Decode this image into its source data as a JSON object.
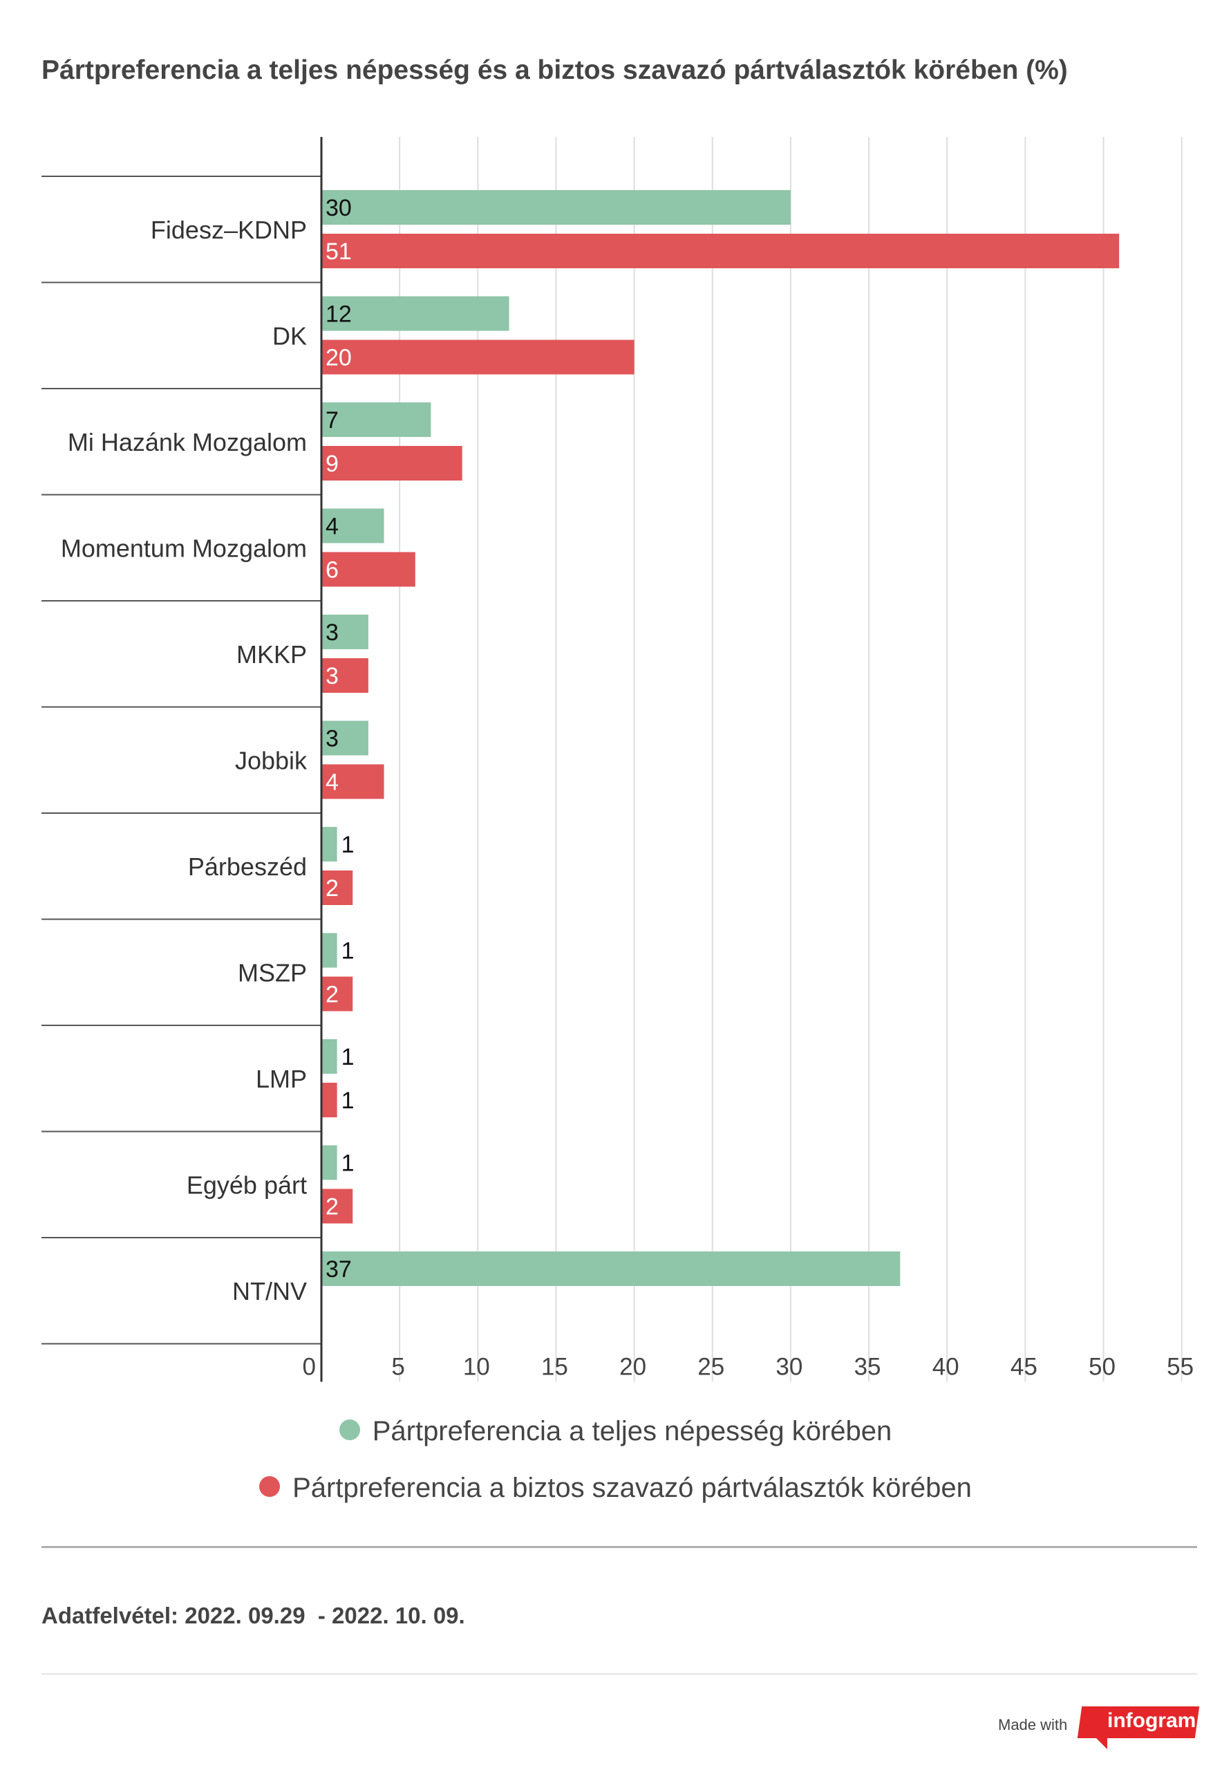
{
  "chart_data": {
    "type": "bar",
    "orientation": "horizontal",
    "title": "Pártpreferencia a teljes népesség és a biztos szavazó pártválasztók körében (%)",
    "categories": [
      "Fidesz–KDNP",
      "DK",
      "Mi Hazánk Mozgalom",
      "Momentum Mozgalom",
      "MKKP",
      "Jobbik",
      "Párbeszéd",
      "MSZP",
      "LMP",
      "Egyéb párt",
      "NT/NV"
    ],
    "series": [
      {
        "name": "Pártpreferencia a teljes népesség körében",
        "color": "#8fc5a8",
        "values": [
          30,
          12,
          7,
          4,
          3,
          3,
          1,
          1,
          1,
          1,
          37
        ]
      },
      {
        "name": "Pártpreferencia a biztos szavazó pártválasztók körében",
        "color": "#e05558",
        "values": [
          51,
          20,
          9,
          6,
          3,
          4,
          2,
          2,
          1,
          2,
          null
        ]
      }
    ],
    "xlim": [
      0,
      55
    ],
    "xticks": [
      0,
      5,
      10,
      15,
      20,
      25,
      30,
      35,
      40,
      45,
      50,
      55
    ],
    "grid": true,
    "legend_position": "bottom"
  },
  "footnote": "Adatfelvétel: 2022. 09.29  - 2022. 10. 09.",
  "brand": {
    "made_with": "Made with",
    "logo": "infogram"
  }
}
